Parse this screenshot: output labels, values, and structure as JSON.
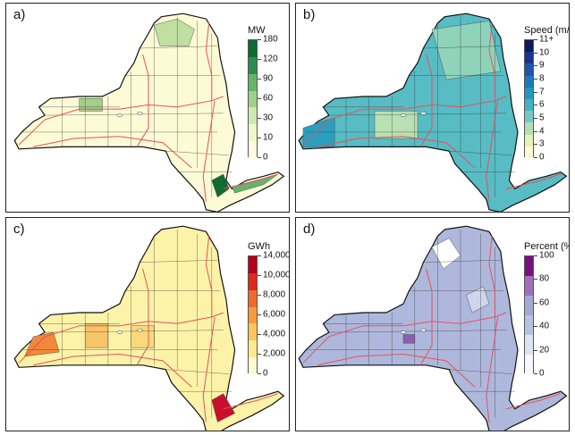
{
  "panels": [
    {
      "label": "a)",
      "legend": {
        "title": "MW",
        "ticks": [
          "180",
          "120",
          "90",
          "60",
          "30",
          "10",
          "0"
        ],
        "colors": [
          "#0f6b34",
          "#2c8d4a",
          "#64b46a",
          "#9fd18b",
          "#cde8b3",
          "#eef7c8",
          "#fffce0"
        ]
      },
      "base_color": "#fdfbd6",
      "highlight_colors": [
        "#bfe0a0",
        "#9fd18b",
        "#0f6b34",
        "#64b46a"
      ]
    },
    {
      "label": "b)",
      "legend": {
        "title": "Speed (m/s)",
        "ticks": [
          "11+",
          "10",
          "9",
          "8",
          "7",
          "6",
          "5",
          "4",
          "3",
          "0"
        ],
        "colors": [
          "#0b1b5c",
          "#18348f",
          "#1f55ad",
          "#1d79b8",
          "#2397bf",
          "#43b3c2",
          "#78c9bd",
          "#b2deb6",
          "#e6f2b4",
          "#fcfad2"
        ]
      },
      "base_color": "#57bcc4",
      "highlight_colors": [
        "#8fd3bb",
        "#b9e1b3",
        "#2a9fc0"
      ]
    },
    {
      "label": "c)",
      "legend": {
        "title": "GWh",
        "ticks": [
          "14,000",
          "10,000",
          "8,000",
          "6,000",
          "4,000",
          "2,000",
          "0"
        ],
        "colors": [
          "#b3001b",
          "#dd2a1a",
          "#ee6a2a",
          "#f79a3a",
          "#fbc65a",
          "#fde98c",
          "#fefbd0"
        ]
      },
      "base_color": "#fdf3a8",
      "highlight_colors": [
        "#f8c468",
        "#f0883a",
        "#c8102e",
        "#fbd97a"
      ]
    },
    {
      "label": "d)",
      "legend": {
        "title": "Percent (%)",
        "ticks": [
          "100",
          "80",
          "60",
          "40",
          "20",
          "0"
        ],
        "colors": [
          "#7a0f82",
          "#9f6fb8",
          "#a3a9d3",
          "#b6c3de",
          "#dbe4f1",
          "#f6f8fd"
        ]
      },
      "base_color": "#aeb8dc",
      "highlight_colors": [
        "#ffffff",
        "#cfd6ec",
        "#8a5fb0"
      ]
    }
  ],
  "styles": {
    "outline_color": "#111111",
    "road_color": "#e8505a",
    "border_color": "#222222"
  }
}
